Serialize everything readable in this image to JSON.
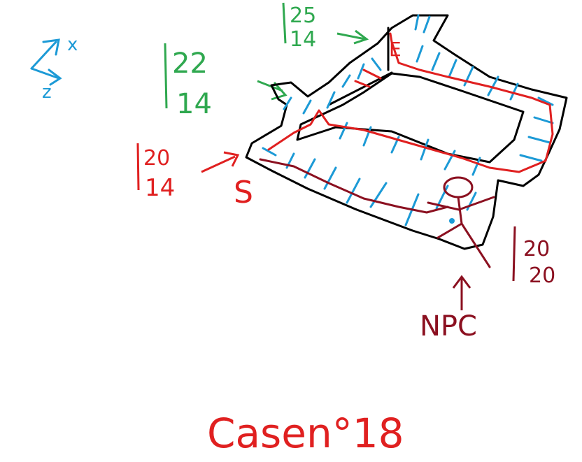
{
  "axes": {
    "x_label": "x",
    "z_label": "z"
  },
  "annotations": {
    "green_top": {
      "top": "25",
      "bottom": "14"
    },
    "green_left": {
      "top": "22",
      "bottom": "14"
    },
    "red_left": {
      "top": "20",
      "bottom": "14"
    },
    "npc_right": {
      "top": "20",
      "bottom": "20"
    }
  },
  "markers": {
    "start": "S",
    "end": "E",
    "npc": "NPC"
  },
  "caption": "Casen°18",
  "colors": {
    "outline": "#000000",
    "grid": "#1c9ad6",
    "path_red": "#e02020",
    "path_dark_red": "#8b1020",
    "green": "#2fa84f",
    "blue_axes": "#1c9ad6"
  }
}
